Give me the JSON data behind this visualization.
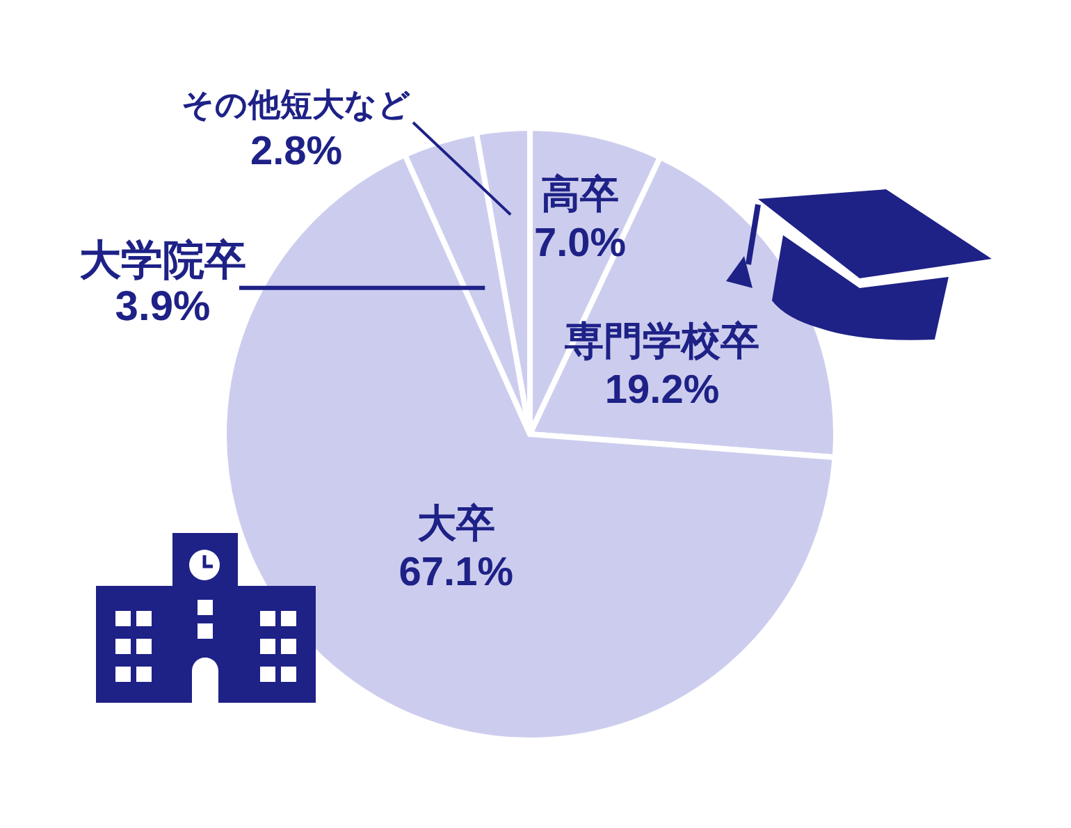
{
  "chart_data": {
    "type": "pie",
    "categories": [
      "高卒",
      "専門学校卒",
      "大卒",
      "大学院卒",
      "その他短大など"
    ],
    "values": [
      7.0,
      19.2,
      67.1,
      3.9,
      2.8
    ],
    "colors": [
      "#cccdee",
      "#cccdee",
      "#cccdee",
      "#cccdee",
      "#cccdee"
    ],
    "value_labels": [
      "7.0%",
      "19.2%",
      "67.1%",
      "3.9%",
      "2.8%"
    ]
  }
}
